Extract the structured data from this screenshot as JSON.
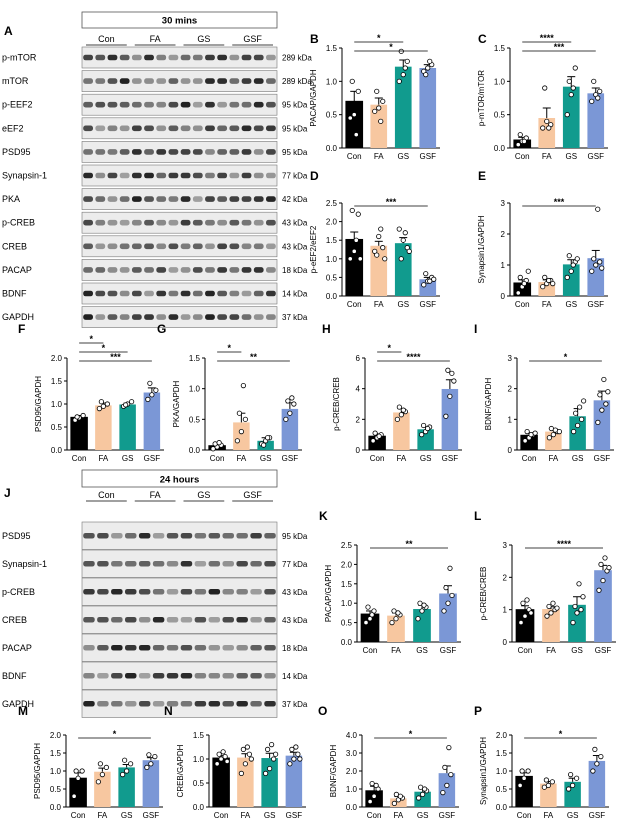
{
  "colors": {
    "Con": "#000000",
    "FA": "#f7c7a0",
    "GS": "#119b8e",
    "GSF": "#7b97d6"
  },
  "blots": [
    {
      "letter": "A",
      "time": "30 mins",
      "groups": [
        "Con",
        "FA",
        "GS",
        "GSF"
      ],
      "bands": [
        {
          "name": "p-mTOR",
          "kda": "289 kDa"
        },
        {
          "name": "mTOR",
          "kda": "289 kDa"
        },
        {
          "name": "p-EEF2",
          "kda": "95 kDa"
        },
        {
          "name": "eEF2",
          "kda": "95 kDa"
        },
        {
          "name": "PSD95",
          "kda": "95 kDa"
        },
        {
          "name": "Synapsin-1",
          "kda": "77 kDa"
        },
        {
          "name": "PKA",
          "kda": "42 kDa"
        },
        {
          "name": "p-CREB",
          "kda": "43 kDa"
        },
        {
          "name": "CREB",
          "kda": "43 kDa"
        },
        {
          "name": "PACAP",
          "kda": "18 kDa"
        },
        {
          "name": "BDNF",
          "kda": "14 kDa"
        },
        {
          "name": "GAPDH",
          "kda": "37 kDa"
        }
      ]
    },
    {
      "letter": "J",
      "time": "24 hours",
      "groups": [
        "Con",
        "FA",
        "GS",
        "GSF"
      ],
      "bands": [
        {
          "name": "PSD95",
          "kda": "95 kDa"
        },
        {
          "name": "Synapsin-1",
          "kda": "77 kDa"
        },
        {
          "name": "p-CREB",
          "kda": "43 kDa"
        },
        {
          "name": "CREB",
          "kda": "43 kDa"
        },
        {
          "name": "PACAP",
          "kda": "18 kDa"
        },
        {
          "name": "BDNF",
          "kda": "14 kDa"
        },
        {
          "name": "GAPDH",
          "kda": "37 kDa"
        }
      ]
    }
  ],
  "chart_data": [
    {
      "letter": "B",
      "type": "bar",
      "categories": [
        "Con",
        "FA",
        "GS",
        "GSF"
      ],
      "values": [
        0.7,
        0.65,
        1.22,
        1.2
      ],
      "errors": [
        0.15,
        0.1,
        0.1,
        0.05
      ],
      "ylabel": "PACAP/GAPDH",
      "ylim": [
        0,
        1.5
      ],
      "yticks": [
        0.0,
        0.5,
        1.0,
        1.5
      ],
      "ytick_labels": [
        "0.0",
        "0.5",
        "1.0",
        "1.5"
      ],
      "points": [
        [
          0.45,
          0.5,
          0.85,
          1.0,
          0.2
        ],
        [
          0.55,
          0.6,
          0.7,
          0.85,
          0.4
        ],
        [
          1.0,
          1.1,
          1.3,
          1.45,
          1.2
        ],
        [
          1.15,
          1.2,
          1.25,
          1.1,
          1.3
        ]
      ],
      "sig": [
        {
          "from": 0,
          "to": 2,
          "label": "*"
        },
        {
          "from": 0,
          "to": 3,
          "label": "*"
        }
      ]
    },
    {
      "letter": "C",
      "type": "bar",
      "categories": [
        "Con",
        "FA",
        "GS",
        "GSF"
      ],
      "values": [
        0.12,
        0.45,
        0.92,
        0.82
      ],
      "errors": [
        0.04,
        0.15,
        0.15,
        0.08
      ],
      "ylabel": "p-mTOR/mTOR",
      "ylim": [
        0,
        1.5
      ],
      "yticks": [
        0.0,
        0.5,
        1.0,
        1.5
      ],
      "ytick_labels": [
        "0.0",
        "0.5",
        "1.0",
        "1.5"
      ],
      "points": [
        [
          0.05,
          0.1,
          0.15,
          0.2,
          0.1
        ],
        [
          0.3,
          0.4,
          0.35,
          0.9,
          0.3
        ],
        [
          0.5,
          0.8,
          1.2,
          1.0,
          0.9
        ],
        [
          0.7,
          0.8,
          0.85,
          1.0,
          0.75
        ]
      ],
      "sig": [
        {
          "from": 0,
          "to": 2,
          "label": "****"
        },
        {
          "from": 0,
          "to": 3,
          "label": "***"
        }
      ]
    },
    {
      "letter": "D",
      "type": "bar",
      "categories": [
        "Con",
        "FA",
        "GS",
        "GSF"
      ],
      "values": [
        1.52,
        1.35,
        1.42,
        0.45
      ],
      "errors": [
        0.2,
        0.12,
        0.15,
        0.05
      ],
      "ylabel": "p-eEF2/eEF2",
      "ylim": [
        0,
        2.5
      ],
      "yticks": [
        0.0,
        0.5,
        1.0,
        1.5,
        2.0,
        2.5
      ],
      "ytick_labels": [
        "0.0",
        "0.5",
        "1.0",
        "1.5",
        "2.0",
        "2.5"
      ],
      "points": [
        [
          1.0,
          1.2,
          2.2,
          2.3,
          1.5,
          1.0
        ],
        [
          1.2,
          1.6,
          1.3,
          1.1,
          1.8,
          1.0
        ],
        [
          1.8,
          1.5,
          1.3,
          1.0,
          1.7,
          1.2
        ],
        [
          0.3,
          0.4,
          0.5,
          0.6,
          0.4,
          0.45
        ]
      ],
      "sig": [
        {
          "from": 0,
          "to": 3,
          "label": "***"
        }
      ]
    },
    {
      "letter": "E",
      "type": "bar",
      "categories": [
        "Con",
        "FA",
        "GS",
        "GSF"
      ],
      "values": [
        0.42,
        0.45,
        1.02,
        1.22
      ],
      "errors": [
        0.1,
        0.07,
        0.15,
        0.25
      ],
      "ylabel": "Synapsin1/GAPDH",
      "ylim": [
        0,
        3
      ],
      "yticks": [
        0,
        1,
        2,
        3
      ],
      "ytick_labels": [
        "0",
        "1",
        "2",
        "3"
      ],
      "points": [
        [
          0.1,
          0.3,
          0.5,
          0.6,
          0.4,
          0.8
        ],
        [
          0.3,
          0.4,
          0.5,
          0.6,
          0.5,
          0.4
        ],
        [
          0.6,
          0.8,
          1.1,
          1.3,
          1.0,
          1.2
        ],
        [
          0.8,
          1.0,
          1.1,
          1.2,
          2.8,
          0.9
        ]
      ],
      "sig": [
        {
          "from": 0,
          "to": 3,
          "label": "***"
        }
      ]
    },
    {
      "letter": "F",
      "type": "bar",
      "categories": [
        "Con",
        "FA",
        "GS",
        "GSF"
      ],
      "values": [
        0.71,
        0.97,
        0.99,
        1.25
      ],
      "errors": [
        0.04,
        0.05,
        0.03,
        0.1
      ],
      "ylabel": "PSD95/GAPDH",
      "ylim": [
        0,
        2.0
      ],
      "yticks": [
        0.0,
        0.5,
        1.0,
        1.5,
        2.0
      ],
      "ytick_labels": [
        "0.0",
        "0.5",
        "1.0",
        "1.5",
        "2.0"
      ],
      "points": [
        [
          0.65,
          0.7,
          0.75,
          0.72
        ],
        [
          0.9,
          0.95,
          1.0,
          1.05
        ],
        [
          0.95,
          1.0,
          1.05,
          0.98
        ],
        [
          1.1,
          1.2,
          1.3,
          1.45
        ]
      ],
      "sig": [
        {
          "from": 0,
          "to": 1,
          "label": "*"
        },
        {
          "from": 0,
          "to": 2,
          "label": "*"
        },
        {
          "from": 0,
          "to": 3,
          "label": "***"
        }
      ]
    },
    {
      "letter": "G",
      "type": "bar",
      "categories": [
        "Con",
        "FA",
        "GS",
        "GSF"
      ],
      "values": [
        0.07,
        0.45,
        0.15,
        0.67
      ],
      "errors": [
        0.03,
        0.15,
        0.05,
        0.1
      ],
      "ylabel": "PKA/GAPDH",
      "ylim": [
        0,
        1.5
      ],
      "yticks": [
        0.0,
        0.5,
        1.0,
        1.5
      ],
      "ytick_labels": [
        "0.0",
        "0.5",
        "1.0",
        "1.5"
      ],
      "points": [
        [
          0.02,
          0.05,
          0.08,
          0.1,
          0.12
        ],
        [
          0.15,
          0.3,
          0.5,
          0.6,
          1.05
        ],
        [
          0.1,
          0.15,
          0.2,
          0.08,
          0.2
        ],
        [
          0.5,
          0.6,
          0.75,
          0.8,
          0.85
        ]
      ],
      "sig": [
        {
          "from": 0,
          "to": 1,
          "label": "*"
        },
        {
          "from": 0,
          "to": 3,
          "label": "**"
        }
      ]
    },
    {
      "letter": "H",
      "type": "bar",
      "categories": [
        "Con",
        "FA",
        "GS",
        "GSF"
      ],
      "values": [
        0.9,
        2.45,
        1.35,
        3.98
      ],
      "errors": [
        0.15,
        0.25,
        0.15,
        0.6
      ],
      "ylabel": "p-CREB/CREB",
      "ylim": [
        0,
        6
      ],
      "yticks": [
        0,
        2,
        4,
        6
      ],
      "ytick_labels": [
        "0",
        "2",
        "4",
        "6"
      ],
      "points": [
        [
          0.6,
          0.8,
          1.0,
          1.1,
          0.9
        ],
        [
          2.0,
          2.3,
          2.5,
          2.8,
          2.6
        ],
        [
          1.0,
          1.2,
          1.5,
          1.6,
          1.4
        ],
        [
          2.2,
          3.5,
          4.5,
          5.2,
          5.0
        ]
      ],
      "sig": [
        {
          "from": 0,
          "to": 1,
          "label": "*"
        },
        {
          "from": 0,
          "to": 3,
          "label": "****"
        }
      ]
    },
    {
      "letter": "I",
      "type": "bar",
      "categories": [
        "Con",
        "FA",
        "GS",
        "GSF"
      ],
      "values": [
        0.48,
        0.6,
        1.1,
        1.62
      ],
      "errors": [
        0.08,
        0.1,
        0.25,
        0.3
      ],
      "ylabel": "BDNF/GAPDH",
      "ylim": [
        0,
        3
      ],
      "yticks": [
        0,
        1,
        2,
        3
      ],
      "ytick_labels": [
        "0",
        "1",
        "2",
        "3"
      ],
      "points": [
        [
          0.3,
          0.4,
          0.5,
          0.6,
          0.5,
          0.55
        ],
        [
          0.4,
          0.5,
          0.6,
          0.7,
          0.65,
          0.6
        ],
        [
          0.6,
          0.8,
          1.0,
          1.2,
          1.4,
          1.6
        ],
        [
          0.9,
          1.3,
          1.5,
          1.8,
          2.3,
          1.9
        ]
      ],
      "sig": [
        {
          "from": 0,
          "to": 3,
          "label": "*"
        }
      ]
    },
    {
      "letter": "K",
      "type": "bar",
      "categories": [
        "Con",
        "FA",
        "GS",
        "GSF"
      ],
      "values": [
        0.72,
        0.68,
        0.85,
        1.25
      ],
      "errors": [
        0.08,
        0.07,
        0.1,
        0.2
      ],
      "ylabel": "PACAP/GAPDH",
      "ylim": [
        0,
        2.5
      ],
      "yticks": [
        0.0,
        0.5,
        1.0,
        1.5,
        2.0,
        2.5
      ],
      "ytick_labels": [
        "0.0",
        "0.5",
        "1.0",
        "1.5",
        "2.0",
        "2.5"
      ],
      "points": [
        [
          0.5,
          0.6,
          0.8,
          0.9,
          0.7
        ],
        [
          0.5,
          0.6,
          0.7,
          0.8,
          0.75
        ],
        [
          0.6,
          0.8,
          0.9,
          1.0,
          0.95
        ],
        [
          0.8,
          1.0,
          1.2,
          1.4,
          1.9
        ]
      ],
      "sig": [
        {
          "from": 0,
          "to": 3,
          "label": "**"
        }
      ]
    },
    {
      "letter": "L",
      "type": "bar",
      "categories": [
        "Con",
        "FA",
        "GS",
        "GSF"
      ],
      "values": [
        1.0,
        1.02,
        1.15,
        2.22
      ],
      "errors": [
        0.12,
        0.07,
        0.25,
        0.15
      ],
      "ylabel": "p-CREB/CREB",
      "ylim": [
        0,
        3
      ],
      "yticks": [
        0,
        1,
        2,
        3
      ],
      "ytick_labels": [
        "0",
        "1",
        "2",
        "3"
      ],
      "points": [
        [
          0.6,
          0.8,
          1.0,
          1.2,
          1.3,
          0.9
        ],
        [
          0.8,
          0.9,
          1.0,
          1.1,
          1.2,
          1.05
        ],
        [
          0.6,
          0.9,
          1.0,
          1.1,
          1.8,
          1.4
        ],
        [
          1.6,
          1.9,
          2.2,
          2.4,
          2.6,
          2.3
        ]
      ],
      "sig": [
        {
          "from": 0,
          "to": 3,
          "label": "****"
        }
      ]
    },
    {
      "letter": "M",
      "type": "bar",
      "categories": [
        "Con",
        "FA",
        "GS",
        "GSF"
      ],
      "values": [
        0.8,
        0.98,
        1.1,
        1.3
      ],
      "errors": [
        0.15,
        0.1,
        0.08,
        0.07
      ],
      "ylabel": "PSD95/GAPDH",
      "ylim": [
        0,
        2.0
      ],
      "yticks": [
        0.0,
        0.5,
        1.0,
        1.5,
        2.0
      ],
      "ytick_labels": [
        "0.0",
        "0.5",
        "1.0",
        "1.5",
        "2.0"
      ],
      "points": [
        [
          0.3,
          0.8,
          1.0,
          1.0
        ],
        [
          0.7,
          0.9,
          1.1,
          1.2
        ],
        [
          0.9,
          1.0,
          1.2,
          1.3
        ],
        [
          1.1,
          1.2,
          1.4,
          1.45
        ]
      ],
      "sig": [
        {
          "from": 0,
          "to": 3,
          "label": "*"
        }
      ]
    },
    {
      "letter": "N",
      "type": "bar",
      "categories": [
        "Con",
        "FA",
        "GS",
        "GSF"
      ],
      "values": [
        1.02,
        1.03,
        1.02,
        1.07
      ],
      "errors": [
        0.05,
        0.08,
        0.1,
        0.07
      ],
      "ylabel": "CREB/GAPDH",
      "ylim": [
        0,
        1.5
      ],
      "yticks": [
        0.0,
        0.5,
        1.0,
        1.5
      ],
      "ytick_labels": [
        "0.0",
        "0.5",
        "1.0",
        "1.5"
      ],
      "points": [
        [
          0.9,
          1.0,
          1.05,
          1.1,
          1.15,
          0.95
        ],
        [
          0.7,
          0.9,
          1.1,
          1.2,
          1.25,
          1.0
        ],
        [
          0.7,
          0.8,
          1.0,
          1.2,
          1.3,
          1.1
        ],
        [
          0.9,
          1.0,
          1.1,
          1.2,
          1.25,
          1.0
        ]
      ],
      "sig": []
    },
    {
      "letter": "O",
      "type": "bar",
      "categories": [
        "Con",
        "FA",
        "GS",
        "GSF"
      ],
      "values": [
        0.9,
        0.48,
        0.85,
        1.88
      ],
      "errors": [
        0.25,
        0.1,
        0.15,
        0.4
      ],
      "ylabel": "BDNF/GAPDH",
      "ylim": [
        0,
        4.0
      ],
      "yticks": [
        0.0,
        1.0,
        2.0,
        3.0,
        4.0
      ],
      "ytick_labels": [
        "0.0",
        "1.0",
        "2.0",
        "3.0",
        "4.0"
      ],
      "points": [
        [
          0.3,
          0.6,
          1.0,
          1.3,
          1.2
        ],
        [
          0.2,
          0.4,
          0.5,
          0.7,
          0.6
        ],
        [
          0.5,
          0.7,
          0.9,
          1.1,
          1.0
        ],
        [
          0.8,
          1.2,
          1.8,
          2.2,
          3.3
        ]
      ],
      "sig": [
        {
          "from": 0,
          "to": 3,
          "label": "*"
        }
      ]
    },
    {
      "letter": "P",
      "type": "bar",
      "categories": [
        "Con",
        "FA",
        "GS",
        "GSF"
      ],
      "values": [
        0.85,
        0.65,
        0.7,
        1.28
      ],
      "errors": [
        0.1,
        0.06,
        0.1,
        0.15
      ],
      "ylabel": "Synapsin1/GAPDH",
      "ylim": [
        0,
        2.0
      ],
      "yticks": [
        0.0,
        0.5,
        1.0,
        1.5,
        2.0
      ],
      "ytick_labels": [
        "0.0",
        "0.5",
        "1.0",
        "1.5",
        "2.0"
      ],
      "points": [
        [
          0.6,
          0.8,
          1.0,
          1.0
        ],
        [
          0.55,
          0.6,
          0.7,
          0.75
        ],
        [
          0.5,
          0.6,
          0.8,
          0.9
        ],
        [
          1.0,
          1.2,
          1.4,
          1.6
        ]
      ],
      "sig": [
        {
          "from": 0,
          "to": 3,
          "label": "*"
        }
      ]
    }
  ]
}
